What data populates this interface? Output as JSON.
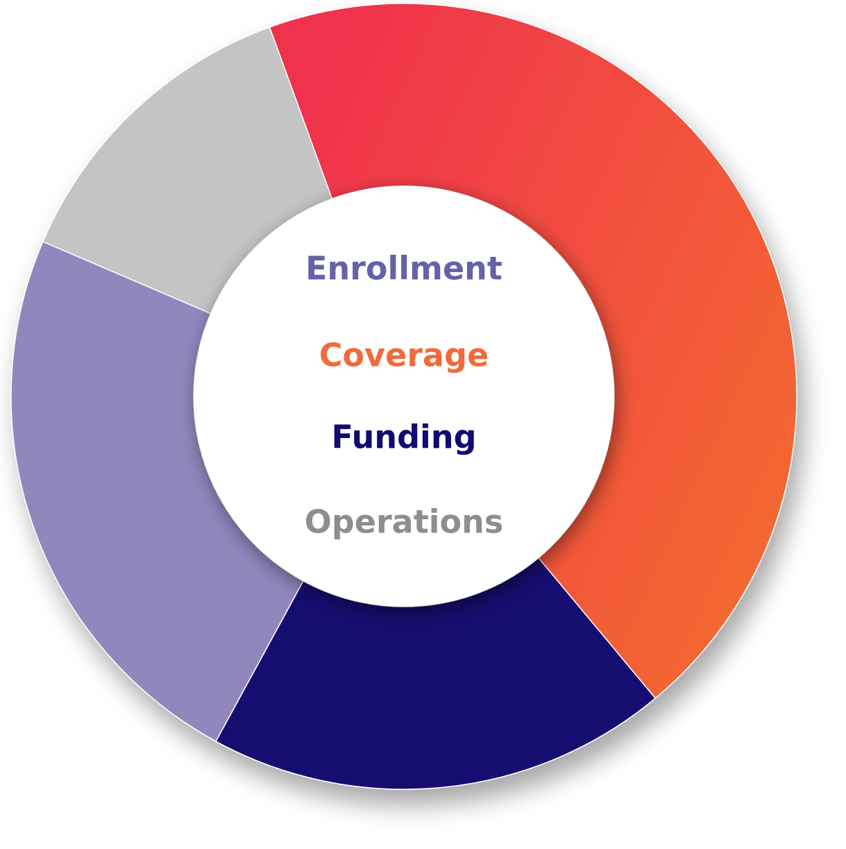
{
  "chart_data": {
    "type": "pie",
    "variant": "donut",
    "segments": [
      {
        "label": "Coverage",
        "value": 44.5,
        "color": "#f15a3f",
        "gradient": [
          "#ef314e",
          "#f36a30"
        ]
      },
      {
        "label": "Funding",
        "value": 19.0,
        "color": "#130970"
      },
      {
        "label": "Enrollment",
        "value": 23.5,
        "color": "#9287bd"
      },
      {
        "label": "Operations",
        "value": 13.0,
        "color": "#c4c4c4"
      }
    ],
    "center_labels": [
      {
        "text": "Enrollment",
        "color": "#6562a8"
      },
      {
        "text": "Coverage",
        "color": "#f26a3b"
      },
      {
        "text": "Funding",
        "color": "#130970"
      },
      {
        "text": "Operations",
        "color": "#8e8e8e"
      }
    ],
    "legend": "center",
    "grid": false
  }
}
